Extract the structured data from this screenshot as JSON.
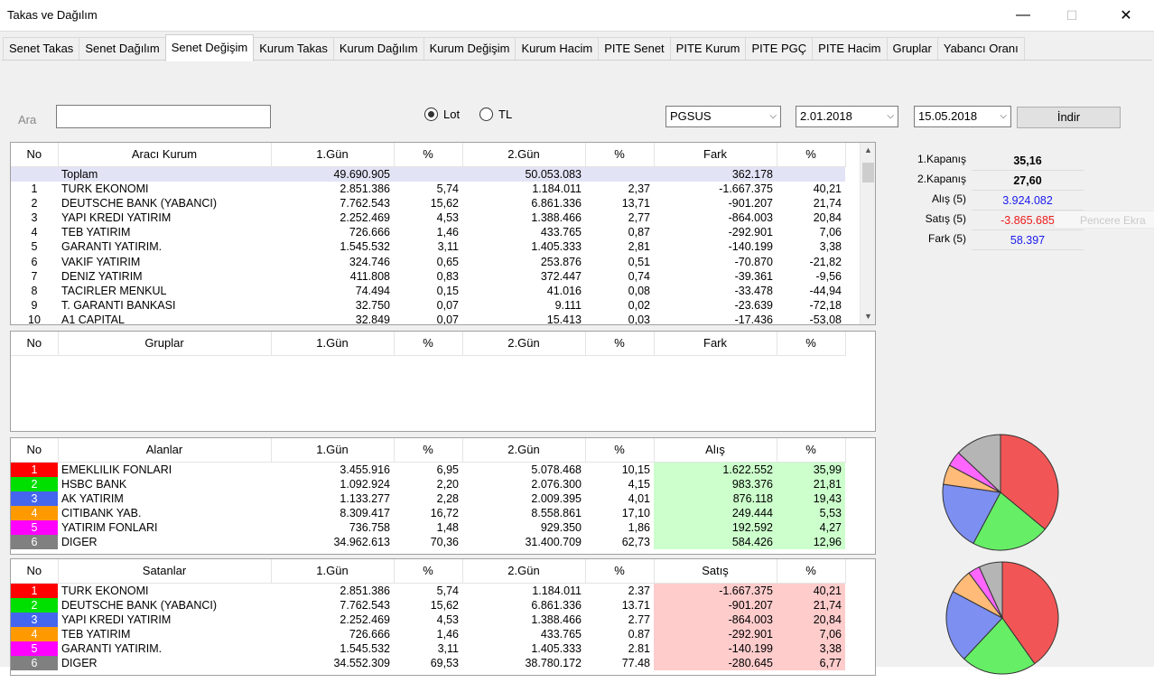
{
  "window": {
    "title": "Takas ve Dağılım",
    "minimize": "—",
    "maximize": "☐",
    "close": "✕"
  },
  "tabs": [
    "Senet Takas",
    "Senet Dağılım",
    "Senet Değişim",
    "Kurum Takas",
    "Kurum Dağılım",
    "Kurum Değişim",
    "Kurum Hacim",
    "PITE Senet",
    "PITE Kurum",
    "PITE PGÇ",
    "PITE Hacim",
    "Gruplar",
    "Yabancı Oranı"
  ],
  "active_tab": "Senet Değişim",
  "search": {
    "label": "Ara",
    "value": ""
  },
  "unit_radio": {
    "lot": "Lot",
    "tl": "TL",
    "selected": "Lot"
  },
  "symbol": "PGSUS",
  "date_start": "2.01.2018",
  "date_end": "15.05.2018",
  "download_button": "İndir",
  "ghost_text": "Pencere Ekra",
  "colors": {
    "red": "#ff0000",
    "green": "#00e000",
    "blue": "#4466ee",
    "orange": "#ff9900",
    "magenta": "#ff00ff",
    "gray": "#808080",
    "alis_bg": "#ccffcc",
    "satis_bg": "#ffcccc"
  },
  "brokers_table": {
    "headers": [
      "No",
      "Aracı Kurum",
      "1.Gün",
      "%",
      "2.Gün",
      "%",
      "Fark",
      "%"
    ],
    "total": {
      "label": "Toplam",
      "day1": "49.690.905",
      "day2": "50.053.083",
      "diff": "362.178"
    },
    "rows": [
      [
        "1",
        "TURK EKONOMI",
        "2.851.386",
        "5,74",
        "1.184.011",
        "2,37",
        "-1.667.375",
        "40,21"
      ],
      [
        "2",
        "DEUTSCHE BANK (YABANCI)",
        "7.762.543",
        "15,62",
        "6.861.336",
        "13,71",
        "-901.207",
        "21,74"
      ],
      [
        "3",
        "YAPI KREDI YATIRIM",
        "2.252.469",
        "4,53",
        "1.388.466",
        "2,77",
        "-864.003",
        "20,84"
      ],
      [
        "4",
        "TEB YATIRIM",
        "726.666",
        "1,46",
        "433.765",
        "0,87",
        "-292.901",
        "7,06"
      ],
      [
        "5",
        "GARANTI YATIRIM.",
        "1.545.532",
        "3,11",
        "1.405.333",
        "2,81",
        "-140.199",
        "3,38"
      ],
      [
        "6",
        "VAKIF YATIRIM",
        "324.746",
        "0,65",
        "253.876",
        "0,51",
        "-70.870",
        "-21,82"
      ],
      [
        "7",
        "DENIZ YATIRIM",
        "411.808",
        "0,83",
        "372.447",
        "0,74",
        "-39.361",
        "-9,56"
      ],
      [
        "8",
        "TACIRLER MENKUL",
        "74.494",
        "0,15",
        "41.016",
        "0,08",
        "-33.478",
        "-44,94"
      ],
      [
        "9",
        "T. GARANTI BANKASI",
        "32.750",
        "0,07",
        "9.111",
        "0,02",
        "-23.639",
        "-72,18"
      ],
      [
        "10",
        "A1 CAPITAL",
        "32.849",
        "0,07",
        "15.413",
        "0,03",
        "-17.436",
        "-53,08"
      ]
    ]
  },
  "groups_table": {
    "headers": [
      "No",
      "Gruplar",
      "1.Gün",
      "%",
      "2.Gün",
      "%",
      "Fark",
      "%"
    ]
  },
  "buyers_table": {
    "headers": [
      "No",
      "Alanlar",
      "1.Gün",
      "%",
      "2.Gün",
      "%",
      "Alış",
      "%"
    ],
    "rows": [
      [
        "1",
        "EMEKLILIK FONLARI",
        "3.455.916",
        "6,95",
        "5.078.468",
        "10,15",
        "1.622.552",
        "35,99"
      ],
      [
        "2",
        "HSBC BANK",
        "1.092.924",
        "2,20",
        "2.076.300",
        "4,15",
        "983.376",
        "21,81"
      ],
      [
        "3",
        "AK YATIRIM",
        "1.133.277",
        "2,28",
        "2.009.395",
        "4,01",
        "876.118",
        "19,43"
      ],
      [
        "4",
        "CITIBANK YAB.",
        "8.309.417",
        "16,72",
        "8.558.861",
        "17,10",
        "249.444",
        "5,53"
      ],
      [
        "5",
        "YATIRIM FONLARI",
        "736.758",
        "1,48",
        "929.350",
        "1,86",
        "192.592",
        "4,27"
      ],
      [
        "6",
        "DIGER",
        "34.962.613",
        "70,36",
        "31.400.709",
        "62,73",
        "584.426",
        "12,96"
      ]
    ]
  },
  "sellers_table": {
    "headers": [
      "No",
      "Satanlar",
      "1.Gün",
      "%",
      "2.Gün",
      "%",
      "Satış",
      "%"
    ],
    "rows": [
      [
        "1",
        "TURK EKONOMI",
        "2.851.386",
        "5,74",
        "1.184.011",
        "2.37",
        "-1.667.375",
        "40,21"
      ],
      [
        "2",
        "DEUTSCHE BANK (YABANCI)",
        "7.762.543",
        "15,62",
        "6.861.336",
        "13.71",
        "-901.207",
        "21,74"
      ],
      [
        "3",
        "YAPI KREDI YATIRIM",
        "2.252.469",
        "4,53",
        "1.388.466",
        "2.77",
        "-864.003",
        "20,84"
      ],
      [
        "4",
        "TEB YATIRIM",
        "726.666",
        "1,46",
        "433.765",
        "0.87",
        "-292.901",
        "7,06"
      ],
      [
        "5",
        "GARANTI YATIRIM.",
        "1.545.532",
        "3,11",
        "1.405.333",
        "2.81",
        "-140.199",
        "3,38"
      ],
      [
        "6",
        "DIGER",
        "34.552.309",
        "69,53",
        "38.780.172",
        "77.48",
        "-280.645",
        "6,77"
      ]
    ]
  },
  "stats": [
    {
      "label": "1.Kapanış",
      "value": "35,16",
      "color": "#000000"
    },
    {
      "label": "2.Kapanış",
      "value": "27,60",
      "color": "#000000"
    },
    {
      "label": "Alış (5)",
      "value": "3.924.082",
      "color": "#1a1aee"
    },
    {
      "label": "Satış (5)",
      "value": "-3.865.685",
      "color": "#ee1a1a"
    },
    {
      "label": "Fark (5)",
      "value": "58.397",
      "color": "#1a1aee"
    }
  ],
  "chart_data": [
    {
      "type": "pie",
      "name": "Alanlar",
      "values": [
        35.99,
        21.81,
        19.43,
        5.53,
        4.27,
        12.96
      ]
    },
    {
      "type": "pie",
      "name": "Satanlar",
      "values": [
        40.21,
        21.74,
        20.84,
        7.06,
        3.38,
        6.77
      ]
    }
  ]
}
